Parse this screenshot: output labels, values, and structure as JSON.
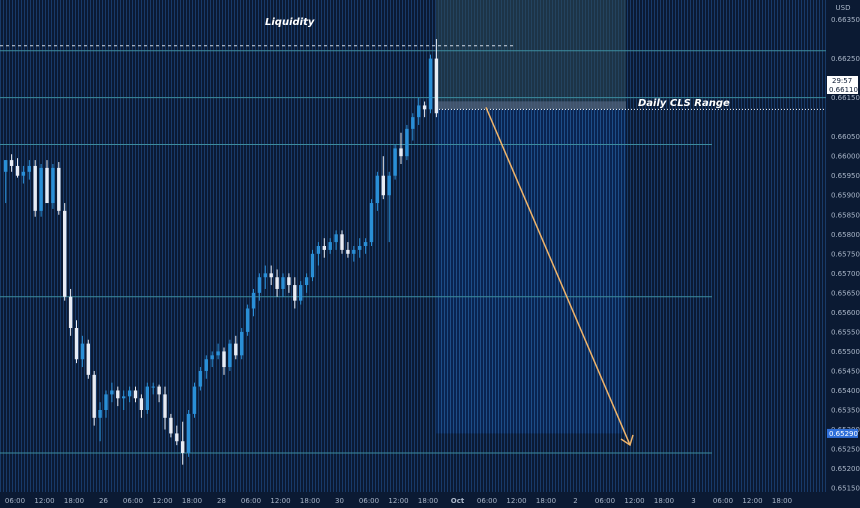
{
  "chart_data": {
    "type": "candlestick",
    "currency": "USD",
    "ylim": [
      0.6514,
      0.664
    ],
    "y_ticks": [
      "0.66350",
      "0.66250",
      "0.66150",
      "0.66050",
      "0.66000",
      "0.65950",
      "0.65900",
      "0.65850",
      "0.65800",
      "0.65750",
      "0.65700",
      "0.65650",
      "0.65600",
      "0.65550",
      "0.65500",
      "0.65450",
      "0.65400",
      "0.65350",
      "0.65300",
      "0.65250",
      "0.65200",
      "0.65150"
    ],
    "x_ticks": [
      "06:00",
      "12:00",
      "18:00",
      "26",
      "06:00",
      "12:00",
      "18:00",
      "28",
      "06:00",
      "12:00",
      "18:00",
      "30",
      "06:00",
      "12:00",
      "18:00",
      "Oct",
      "06:00",
      "12:00",
      "18:00",
      "2",
      "06:00",
      "12:00",
      "18:00",
      "3",
      "06:00",
      "12:00",
      "18:00"
    ],
    "current_price": "0.66110",
    "countdown": "29:57",
    "target_price": "0.65290",
    "levels": {
      "liquidity": 0.6627,
      "upper": 0.6615,
      "mid_high": 0.6603,
      "mid": 0.6564,
      "low": 0.6524
    },
    "annotations": {
      "liquidity": "Liquidity",
      "range": "Daily CLS Range"
    },
    "position": {
      "entry": 0.6612,
      "stop": 0.664,
      "target": 0.6529
    },
    "arrow": {
      "from": 0.66125,
      "to": 0.6524
    },
    "candles": [
      [
        0.6596,
        0.6599,
        0.6588,
        0.6599
      ],
      [
        0.6599,
        0.66005,
        0.6596,
        0.65975
      ],
      [
        0.65975,
        0.65995,
        0.65945,
        0.6595
      ],
      [
        0.6595,
        0.65975,
        0.6593,
        0.6596
      ],
      [
        0.6596,
        0.6599,
        0.6594,
        0.65975
      ],
      [
        0.65975,
        0.6599,
        0.65845,
        0.6586
      ],
      [
        0.6586,
        0.6598,
        0.65845,
        0.6597
      ],
      [
        0.6597,
        0.6599,
        0.6588,
        0.6588
      ],
      [
        0.6588,
        0.6598,
        0.65865,
        0.6597
      ],
      [
        0.6597,
        0.65985,
        0.6585,
        0.6586
      ],
      [
        0.6586,
        0.6588,
        0.6563,
        0.6564
      ],
      [
        0.6564,
        0.6566,
        0.6554,
        0.6556
      ],
      [
        0.6556,
        0.6558,
        0.6547,
        0.6548
      ],
      [
        0.6548,
        0.6554,
        0.6546,
        0.6552
      ],
      [
        0.6552,
        0.6553,
        0.6543,
        0.6544
      ],
      [
        0.6544,
        0.6545,
        0.6531,
        0.6533
      ],
      [
        0.6533,
        0.6537,
        0.6527,
        0.6535
      ],
      [
        0.6535,
        0.654,
        0.6533,
        0.6539
      ],
      [
        0.6539,
        0.6542,
        0.6537,
        0.654
      ],
      [
        0.654,
        0.6541,
        0.6536,
        0.6538
      ],
      [
        0.6538,
        0.654,
        0.6535,
        0.65385
      ],
      [
        0.65385,
        0.6541,
        0.6537,
        0.654
      ],
      [
        0.654,
        0.6541,
        0.6537,
        0.6538
      ],
      [
        0.6538,
        0.6539,
        0.6533,
        0.6535
      ],
      [
        0.6535,
        0.6542,
        0.6534,
        0.6541
      ],
      [
        0.6541,
        0.6542,
        0.6539,
        0.6541
      ],
      [
        0.6541,
        0.65415,
        0.6537,
        0.6539
      ],
      [
        0.6539,
        0.6541,
        0.653,
        0.6533
      ],
      [
        0.6533,
        0.6534,
        0.6528,
        0.6529
      ],
      [
        0.6529,
        0.6531,
        0.6526,
        0.6527
      ],
      [
        0.6527,
        0.6532,
        0.6521,
        0.6524
      ],
      [
        0.6524,
        0.6535,
        0.6523,
        0.6534
      ],
      [
        0.6534,
        0.6542,
        0.6533,
        0.6541
      ],
      [
        0.6541,
        0.6546,
        0.654,
        0.6545
      ],
      [
        0.6545,
        0.6549,
        0.6543,
        0.6548
      ],
      [
        0.6548,
        0.655,
        0.6546,
        0.6549
      ],
      [
        0.6549,
        0.6552,
        0.6548,
        0.655
      ],
      [
        0.655,
        0.6551,
        0.6544,
        0.6546
      ],
      [
        0.6546,
        0.6553,
        0.6545,
        0.6552
      ],
      [
        0.6552,
        0.6554,
        0.6548,
        0.6549
      ],
      [
        0.6549,
        0.6556,
        0.6548,
        0.6555
      ],
      [
        0.6555,
        0.6562,
        0.6554,
        0.6561
      ],
      [
        0.6561,
        0.6566,
        0.6559,
        0.6565
      ],
      [
        0.6565,
        0.657,
        0.6563,
        0.6569
      ],
      [
        0.6569,
        0.6572,
        0.6566,
        0.657
      ],
      [
        0.657,
        0.6572,
        0.6567,
        0.6569
      ],
      [
        0.6569,
        0.6571,
        0.6564,
        0.6566
      ],
      [
        0.6566,
        0.657,
        0.6564,
        0.6569
      ],
      [
        0.6569,
        0.657,
        0.6565,
        0.6567
      ],
      [
        0.6567,
        0.6569,
        0.6561,
        0.6563
      ],
      [
        0.6563,
        0.6568,
        0.6562,
        0.6567
      ],
      [
        0.6567,
        0.657,
        0.6565,
        0.6569
      ],
      [
        0.6569,
        0.6576,
        0.6568,
        0.6575
      ],
      [
        0.6575,
        0.6578,
        0.6572,
        0.6577
      ],
      [
        0.6577,
        0.6579,
        0.6574,
        0.6576
      ],
      [
        0.6576,
        0.6579,
        0.6575,
        0.6578
      ],
      [
        0.6578,
        0.6581,
        0.6576,
        0.658
      ],
      [
        0.658,
        0.6581,
        0.6575,
        0.6576
      ],
      [
        0.6576,
        0.6578,
        0.6574,
        0.6575
      ],
      [
        0.6575,
        0.6577,
        0.6573,
        0.6576
      ],
      [
        0.6576,
        0.6579,
        0.6574,
        0.6577
      ],
      [
        0.6577,
        0.6579,
        0.6575,
        0.6578
      ],
      [
        0.6578,
        0.6589,
        0.6577,
        0.6588
      ],
      [
        0.6588,
        0.6596,
        0.6586,
        0.6595
      ],
      [
        0.6595,
        0.66,
        0.6589,
        0.659
      ],
      [
        0.659,
        0.6596,
        0.6578,
        0.6595
      ],
      [
        0.6595,
        0.6603,
        0.6594,
        0.6602
      ],
      [
        0.6602,
        0.6606,
        0.6598,
        0.66
      ],
      [
        0.66,
        0.6608,
        0.6599,
        0.6607
      ],
      [
        0.6607,
        0.6611,
        0.6604,
        0.661
      ],
      [
        0.661,
        0.6615,
        0.6608,
        0.6613
      ],
      [
        0.6613,
        0.6614,
        0.661,
        0.6612
      ],
      [
        0.6612,
        0.6626,
        0.6611,
        0.6625
      ],
      [
        0.6625,
        0.663,
        0.661,
        0.6611
      ]
    ]
  }
}
